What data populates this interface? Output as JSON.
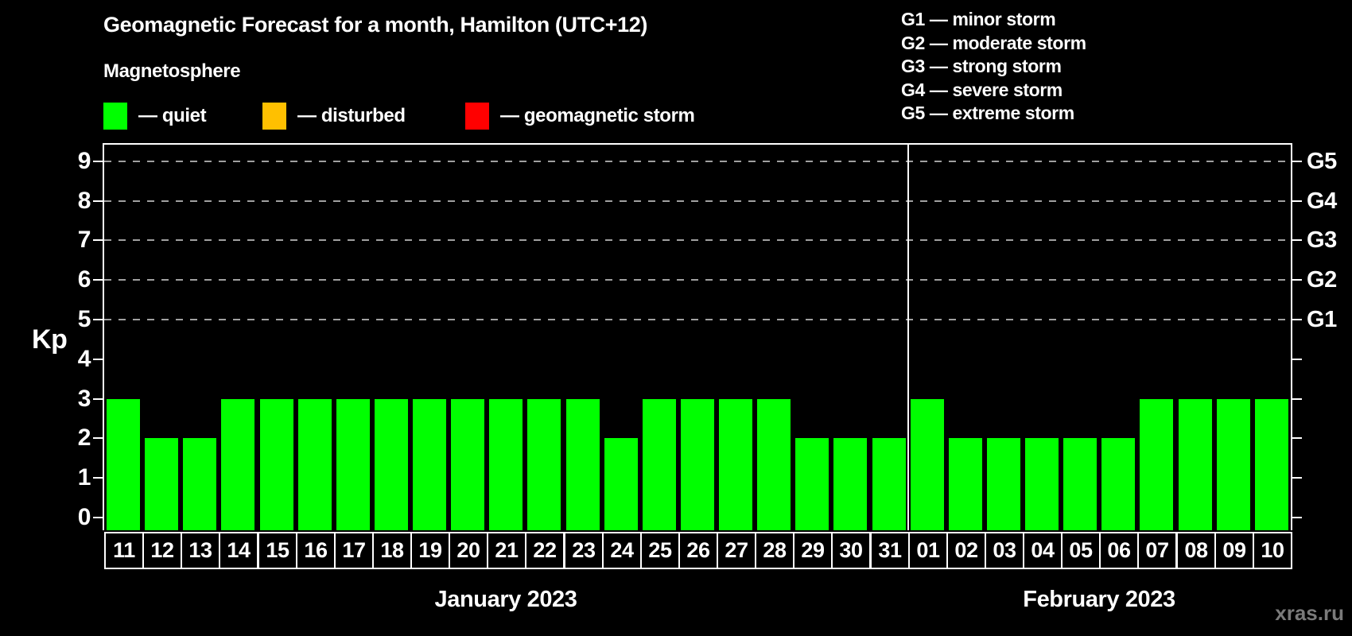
{
  "title": "Geomagnetic Forecast for a month, Hamilton (UTC+12)",
  "subtitle": "Magnetosphere",
  "legend": {
    "items": [
      {
        "label": "— quiet",
        "color": "#00ff00"
      },
      {
        "label": "— disturbed",
        "color": "#ffc000"
      },
      {
        "label": "— geomagnetic storm",
        "color": "#ff0000"
      }
    ]
  },
  "g_legend": [
    "G1 — minor storm",
    "G2 — moderate storm",
    "G3 — strong storm",
    "G4 — severe storm",
    "G5 — extreme storm"
  ],
  "watermark": "xras.ru",
  "chart_data": {
    "type": "bar",
    "title": "Geomagnetic Forecast for a month, Hamilton (UTC+12)",
    "ylabel": "Kp",
    "ylim": [
      0,
      9.5
    ],
    "yticks": [
      0,
      1,
      2,
      3,
      4,
      5,
      6,
      7,
      8,
      9
    ],
    "grid_levels": [
      5,
      6,
      7,
      8,
      9
    ],
    "grid_style": "dashed",
    "legend_position": "top",
    "right_axis": [
      {
        "label": "G1",
        "kp": 5
      },
      {
        "label": "G2",
        "kp": 6
      },
      {
        "label": "G3",
        "kp": 7
      },
      {
        "label": "G4",
        "kp": 8
      },
      {
        "label": "G5",
        "kp": 9
      }
    ],
    "bar_color": "#00ff00",
    "months": [
      {
        "label": "January 2023",
        "days": [
          "11",
          "12",
          "13",
          "14",
          "15",
          "16",
          "17",
          "18",
          "19",
          "20",
          "21",
          "22",
          "23",
          "24",
          "25",
          "26",
          "27",
          "28",
          "29",
          "30",
          "31"
        ],
        "values": [
          3,
          2,
          2,
          3,
          3,
          3,
          3,
          3,
          3,
          3,
          3,
          3,
          3,
          2,
          3,
          3,
          3,
          3,
          2,
          2,
          2
        ]
      },
      {
        "label": "February 2023",
        "days": [
          "01",
          "02",
          "03",
          "04",
          "05",
          "06",
          "07",
          "08",
          "09",
          "10"
        ],
        "values": [
          3,
          2,
          2,
          2,
          2,
          2,
          3,
          3,
          3,
          3
        ]
      }
    ]
  }
}
